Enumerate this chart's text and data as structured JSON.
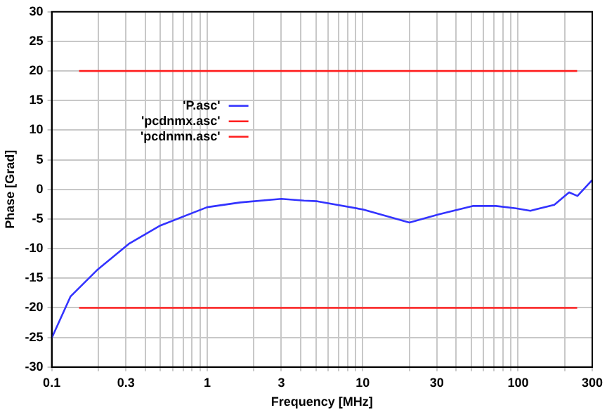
{
  "chart_data": {
    "type": "line",
    "xlabel": "Frequency [MHz]",
    "ylabel": "Phase [Grad]",
    "log": "x",
    "xlim": [
      0.1,
      300
    ],
    "ylim": [
      -30,
      30
    ],
    "xticks": [
      0.1,
      {
        "value": 0.2,
        "label": null
      },
      0.3,
      {
        "value": 0.4,
        "label": null
      },
      {
        "value": 0.5,
        "label": null
      },
      {
        "value": 0.6,
        "label": null
      },
      {
        "value": 0.7,
        "label": null
      },
      {
        "value": 0.8,
        "label": null
      },
      {
        "value": 0.9,
        "label": null
      },
      1,
      {
        "value": 2,
        "label": null
      },
      3,
      {
        "value": 4,
        "label": null
      },
      {
        "value": 5,
        "label": null
      },
      {
        "value": 6,
        "label": null
      },
      {
        "value": 7,
        "label": null
      },
      {
        "value": 8,
        "label": null
      },
      {
        "value": 9,
        "label": null
      },
      10,
      {
        "value": 20,
        "label": null
      },
      30,
      {
        "value": 40,
        "label": null
      },
      {
        "value": 50,
        "label": null
      },
      {
        "value": 60,
        "label": null
      },
      {
        "value": 70,
        "label": null
      },
      {
        "value": 80,
        "label": null
      },
      {
        "value": 90,
        "label": null
      },
      100,
      {
        "value": 200,
        "label": null
      },
      300
    ],
    "yticks": [
      -30,
      -25,
      -20,
      -15,
      -10,
      -5,
      0,
      5,
      10,
      15,
      20,
      25,
      30
    ],
    "grid": true,
    "legend": "top left",
    "marker": "none",
    "line_style": "solid",
    "series": [
      {
        "name": "'P.asc'",
        "color": "#3333ff",
        "x": [
          0.1,
          0.132,
          0.198,
          0.313,
          0.5,
          1.0,
          1.63,
          3.0,
          4.2,
          5.1,
          10.1,
          20,
          31,
          51,
          72,
          97,
          120,
          171,
          213,
          241,
          300
        ],
        "values": [
          -25.1,
          -18.1,
          -13.5,
          -9.2,
          -6.1,
          -3.0,
          -2.2,
          -1.6,
          -1.9,
          -2.0,
          -3.4,
          -5.6,
          -4.2,
          -2.8,
          -2.8,
          -3.2,
          -3.6,
          -2.6,
          -0.5,
          -1.1,
          1.6
        ]
      },
      {
        "name": "'pcdnmx.asc'",
        "color": "#ff2020",
        "x": [
          0.15,
          240
        ],
        "values": [
          20,
          20
        ]
      },
      {
        "name": "'pcdnmn.asc'",
        "color": "#ff2020",
        "x": [
          0.15,
          240
        ],
        "values": [
          -20,
          -20
        ]
      }
    ]
  }
}
